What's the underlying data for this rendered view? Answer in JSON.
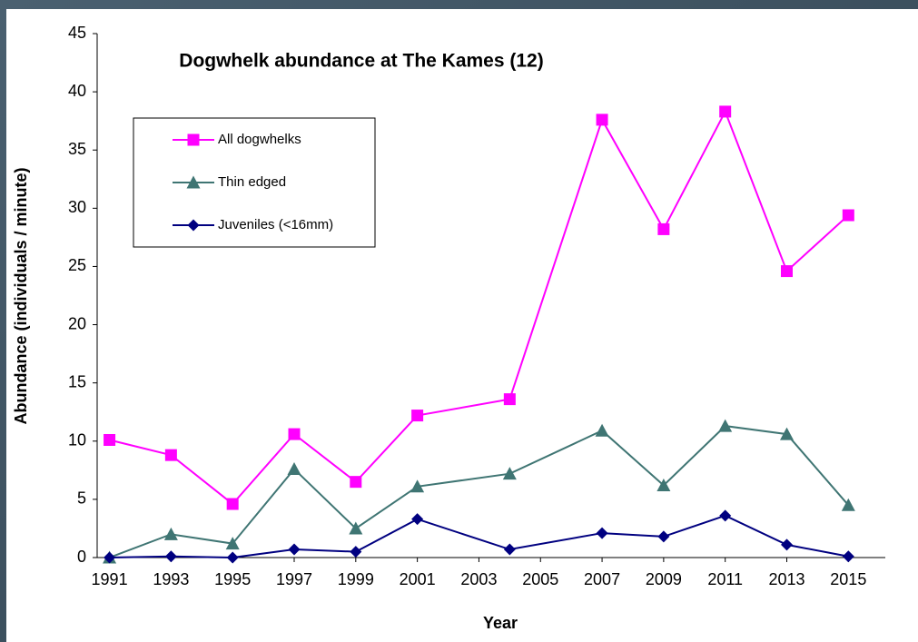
{
  "chart_data": {
    "type": "line",
    "title": "Dogwhelk abundance at The Kames (12)",
    "x_label": "Year",
    "y_label": "Abundance (individuals / minute)",
    "x": [
      1991,
      1993,
      1995,
      1997,
      1999,
      2001,
      2004,
      2007,
      2009,
      2011,
      2013,
      2015
    ],
    "series": [
      {
        "name": "All dogwhelks",
        "color": "#ff00ff",
        "marker": "square",
        "values": [
          10.1,
          8.8,
          4.6,
          10.6,
          6.5,
          12.2,
          13.6,
          37.6,
          28.2,
          38.3,
          24.6,
          29.4
        ]
      },
      {
        "name": "Thin edged",
        "color": "#3f7573",
        "marker": "triangle",
        "values": [
          0,
          2.0,
          1.2,
          7.6,
          2.5,
          6.1,
          7.2,
          10.9,
          6.2,
          11.3,
          10.6,
          4.5
        ]
      },
      {
        "name": "Juveniles (<16mm)",
        "color": "#000080",
        "marker": "diamond",
        "values": [
          0,
          0.1,
          0,
          0.7,
          0.5,
          3.3,
          0.7,
          2.1,
          1.8,
          3.6,
          1.1,
          0.1
        ]
      }
    ],
    "xlim": [
      1990.6,
      2016.2
    ],
    "xticks": [
      1991,
      1993,
      1995,
      1997,
      1999,
      2001,
      2003,
      2005,
      2007,
      2009,
      2011,
      2013,
      2015
    ],
    "ylim": [
      0,
      45
    ],
    "yticks": [
      0,
      5,
      10,
      15,
      20,
      25,
      30,
      35,
      40,
      45
    ],
    "legend": "upper left"
  }
}
